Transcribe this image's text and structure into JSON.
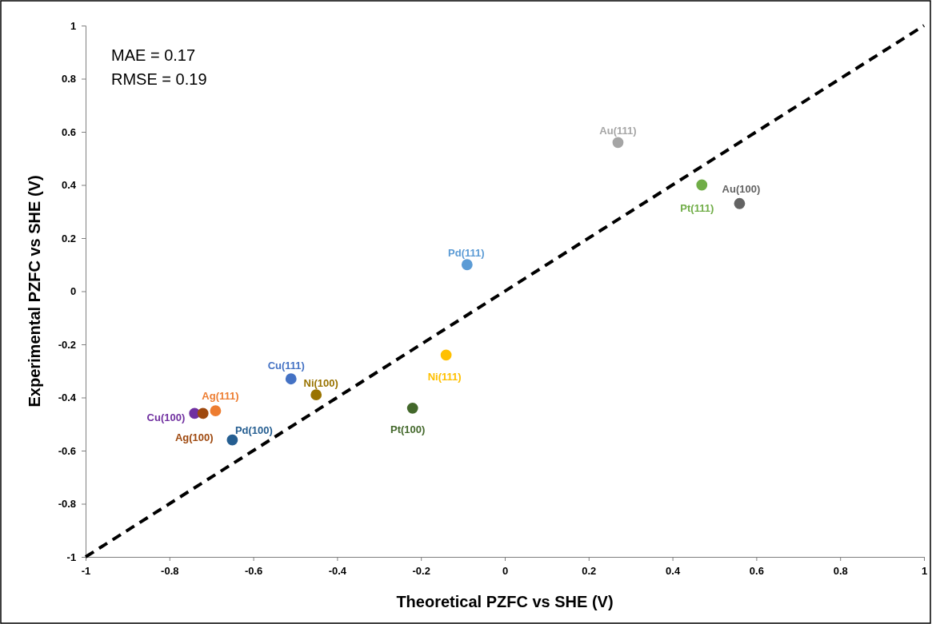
{
  "chart_data": {
    "type": "scatter",
    "xlabel": "Theoretical PZFC vs SHE (V)",
    "ylabel": "Experimental PZFC vs SHE (V)",
    "xlim": [
      -1,
      1
    ],
    "ylim": [
      -1,
      1
    ],
    "xticks": [
      -1,
      -0.8,
      -0.6,
      -0.4,
      -0.2,
      0,
      0.2,
      0.4,
      0.6,
      0.8,
      1
    ],
    "yticks": [
      -1,
      -0.8,
      -0.6,
      -0.4,
      -0.2,
      0,
      0.2,
      0.4,
      0.6,
      0.8,
      1
    ],
    "grid": false,
    "legend": false,
    "marker": "circle",
    "annotations": [
      "MAE = 0.17",
      "RMSE = 0.19"
    ],
    "series": [
      {
        "type": "line",
        "color": "#000000",
        "line_style": "dashed",
        "marker": "none",
        "x": [
          -1,
          1
        ],
        "values": [
          -1,
          1
        ]
      },
      {
        "name": "Au(111)",
        "color": "#a5a5a5",
        "x": [
          0.27
        ],
        "values": [
          0.56
        ]
      },
      {
        "name": "Pt(111)",
        "color": "#70ad47",
        "x": [
          0.47
        ],
        "values": [
          0.4
        ]
      },
      {
        "name": "Au(100)",
        "color": "#636363",
        "x": [
          0.56
        ],
        "values": [
          0.33
        ]
      },
      {
        "name": "Pd(111)",
        "color": "#5b9bd5",
        "x": [
          -0.09
        ],
        "values": [
          0.1
        ]
      },
      {
        "name": "Ni(111)",
        "color": "#ffc000",
        "x": [
          -0.14
        ],
        "values": [
          -0.24
        ]
      },
      {
        "name": "Pt(100)",
        "color": "#43682b",
        "x": [
          -0.22
        ],
        "values": [
          -0.44
        ]
      },
      {
        "name": "Cu(111)",
        "color": "#4472c4",
        "x": [
          -0.51
        ],
        "values": [
          -0.33
        ]
      },
      {
        "name": "Ni(100)",
        "color": "#997300",
        "x": [
          -0.45
        ],
        "values": [
          -0.39
        ]
      },
      {
        "name": "Ag(111)",
        "color": "#ed7d31",
        "x": [
          -0.69
        ],
        "values": [
          -0.45
        ]
      },
      {
        "name": "Cu(100)",
        "color": "#7030a0",
        "x": [
          -0.74
        ],
        "values": [
          -0.46
        ]
      },
      {
        "name": "Ag(100)",
        "color": "#9e480e",
        "x": [
          -0.72
        ],
        "values": [
          -0.46
        ]
      },
      {
        "name": "Pd(100)",
        "color": "#255e91",
        "x": [
          -0.65
        ],
        "values": [
          -0.56
        ]
      }
    ]
  }
}
